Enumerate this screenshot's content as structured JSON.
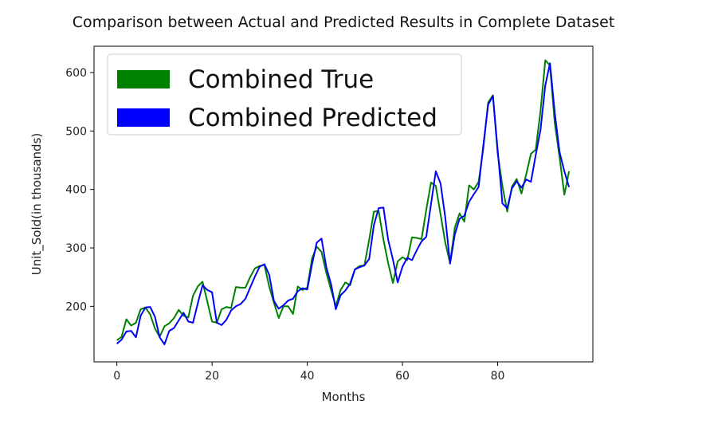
{
  "chart_data": {
    "type": "line",
    "title": "Comparison between Actual and Predicted Results in Complete Dataset",
    "xlabel": "Months",
    "ylabel": "Unit_Sold(in thousands)",
    "xlim": [
      -4.8,
      100
    ],
    "ylim": [
      105,
      645
    ],
    "xticks": [
      0,
      20,
      40,
      60,
      80
    ],
    "yticks": [
      200,
      300,
      400,
      500,
      600
    ],
    "grid": false,
    "legend_position": "top-left",
    "series": [
      {
        "name": "Combined True",
        "color": "#008000",
        "x": [
          0,
          1,
          2,
          3,
          4,
          5,
          6,
          7,
          8,
          9,
          10,
          11,
          12,
          13,
          14,
          15,
          16,
          17,
          18,
          19,
          20,
          21,
          22,
          23,
          24,
          25,
          26,
          27,
          28,
          29,
          30,
          31,
          32,
          33,
          34,
          35,
          36,
          37,
          38,
          39,
          40,
          41,
          42,
          43,
          44,
          45,
          46,
          47,
          48,
          49,
          50,
          51,
          52,
          53,
          54,
          55,
          56,
          57,
          58,
          59,
          60,
          61,
          62,
          63,
          64,
          65,
          66,
          67,
          68,
          69,
          70,
          71,
          72,
          73,
          74,
          75,
          76,
          77,
          78,
          79,
          80,
          81,
          82,
          83,
          84,
          85,
          86,
          87,
          88,
          89,
          90,
          91,
          92,
          93,
          94,
          95
        ],
        "values": [
          142,
          148,
          178,
          167,
          172,
          195,
          198,
          186,
          162,
          148,
          166,
          171,
          180,
          194,
          184,
          181,
          218,
          234,
          242,
          208,
          174,
          172,
          195,
          199,
          197,
          233,
          232,
          232,
          250,
          265,
          269,
          271,
          234,
          206,
          180,
          200,
          200,
          187,
          234,
          228,
          232,
          282,
          302,
          293,
          257,
          228,
          200,
          228,
          241,
          236,
          263,
          269,
          270,
          314,
          362,
          363,
          314,
          274,
          240,
          277,
          284,
          279,
          318,
          317,
          315,
          365,
          412,
          406,
          357,
          309,
          274,
          335,
          359,
          345,
          407,
          400,
          413,
          471,
          549,
          561,
          462,
          406,
          362,
          405,
          418,
          393,
          426,
          461,
          468,
          534,
          621,
          612,
          513,
          455,
          391,
          431
        ]
      },
      {
        "name": "Combined Predicted",
        "color": "#0000ff",
        "x": [
          0,
          1,
          2,
          3,
          4,
          5,
          6,
          7,
          8,
          9,
          10,
          11,
          12,
          13,
          14,
          15,
          16,
          17,
          18,
          19,
          20,
          21,
          22,
          23,
          24,
          25,
          26,
          27,
          28,
          29,
          30,
          31,
          32,
          33,
          34,
          35,
          36,
          37,
          38,
          39,
          40,
          41,
          42,
          43,
          44,
          45,
          46,
          47,
          48,
          49,
          50,
          51,
          52,
          53,
          54,
          55,
          56,
          57,
          58,
          59,
          60,
          61,
          62,
          63,
          64,
          65,
          66,
          67,
          68,
          69,
          70,
          71,
          72,
          73,
          74,
          75,
          76,
          77,
          78,
          79,
          80,
          81,
          82,
          83,
          84,
          85,
          86,
          87,
          88,
          89,
          90,
          91,
          92,
          93,
          94,
          95
        ],
        "values": [
          136,
          143,
          157,
          158,
          147,
          184,
          198,
          199,
          182,
          147,
          135,
          158,
          163,
          176,
          189,
          174,
          172,
          205,
          236,
          228,
          224,
          172,
          168,
          177,
          193,
          200,
          204,
          213,
          232,
          251,
          268,
          272,
          254,
          209,
          196,
          202,
          210,
          213,
          226,
          231,
          229,
          272,
          309,
          316,
          267,
          238,
          195,
          219,
          227,
          239,
          263,
          267,
          270,
          281,
          339,
          368,
          369,
          314,
          280,
          241,
          268,
          283,
          279,
          296,
          311,
          319,
          375,
          431,
          410,
          352,
          273,
          323,
          350,
          355,
          379,
          392,
          404,
          476,
          545,
          560,
          468,
          376,
          368,
          402,
          414,
          403,
          417,
          413,
          459,
          502,
          578,
          616,
          531,
          464,
          431,
          404
        ]
      }
    ]
  }
}
